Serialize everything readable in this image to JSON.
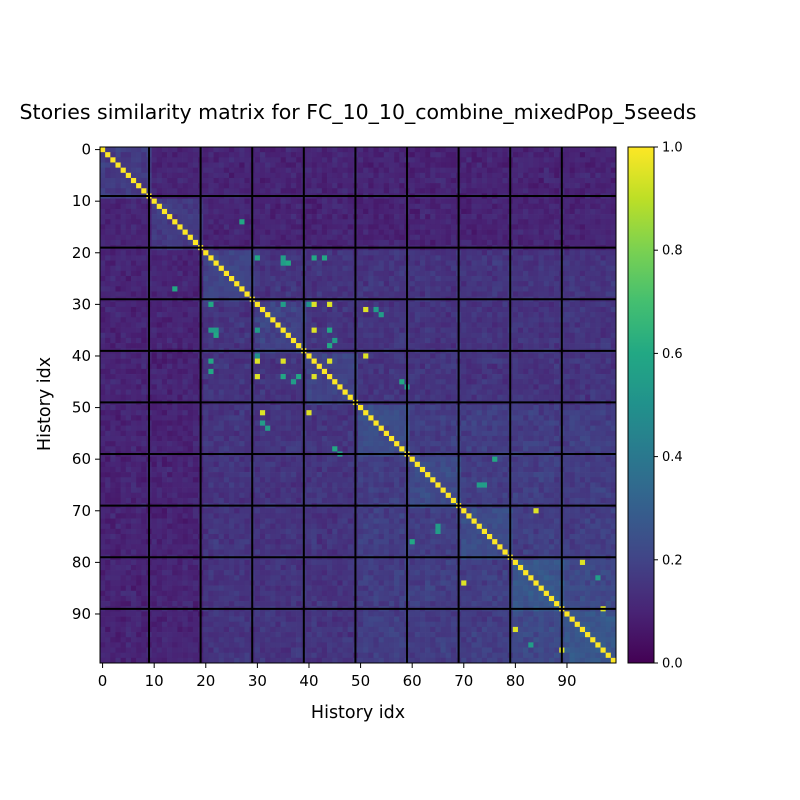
{
  "chart_data": {
    "type": "heatmap",
    "title": "Stories similarity matrix for FC_10_10_combine_mixedPop_5seeds",
    "xlabel": "History idx",
    "ylabel": "History idx",
    "size": 100,
    "block_size": 10,
    "x_ticks": [
      0,
      10,
      20,
      30,
      40,
      50,
      60,
      70,
      80,
      90
    ],
    "y_ticks": [
      0,
      10,
      20,
      30,
      40,
      50,
      60,
      70,
      80,
      90
    ],
    "colorbar": {
      "colormap": "viridis",
      "range": [
        0.0,
        1.0
      ],
      "ticks": [
        0.0,
        0.2,
        0.4,
        0.6,
        0.8,
        1.0
      ],
      "tick_labels": [
        "0.0",
        "0.2",
        "0.4",
        "0.6",
        "0.8",
        "1.0"
      ]
    },
    "diagonal_value": 1.0,
    "typical_value": 0.12,
    "grid_lines": "black lines separating blocks every 10 indices",
    "high_similarity_pairs": [
      [
        21,
        30,
        0.6
      ],
      [
        21,
        41,
        0.6
      ],
      [
        21,
        43,
        0.6
      ],
      [
        21,
        35,
        0.6
      ],
      [
        30,
        41,
        0.95
      ],
      [
        30,
        44,
        0.95
      ],
      [
        30,
        35,
        0.55
      ],
      [
        30,
        40,
        0.5
      ],
      [
        35,
        41,
        0.95
      ],
      [
        35,
        44,
        0.6
      ],
      [
        35,
        21,
        0.55
      ],
      [
        35,
        22,
        0.55
      ],
      [
        41,
        44,
        0.95
      ],
      [
        40,
        51,
        0.95
      ],
      [
        31,
        51,
        0.95
      ],
      [
        31,
        53,
        0.55
      ],
      [
        37,
        45,
        0.55
      ],
      [
        38,
        44,
        0.6
      ],
      [
        27,
        14,
        0.6
      ],
      [
        14,
        27,
        0.6
      ],
      [
        58,
        45,
        0.6
      ],
      [
        46,
        59,
        0.55
      ],
      [
        54,
        32,
        0.55
      ],
      [
        70,
        84,
        0.95
      ],
      [
        80,
        93,
        0.95
      ],
      [
        89,
        97,
        0.95
      ],
      [
        97,
        89,
        0.95
      ],
      [
        76,
        60,
        0.6
      ],
      [
        65,
        73,
        0.55
      ],
      [
        74,
        65,
        0.55
      ],
      [
        83,
        96,
        0.55
      ],
      [
        36,
        22,
        0.6
      ],
      [
        22,
        36,
        0.6
      ],
      [
        43,
        21,
        0.6
      ],
      [
        44,
        30,
        0.95
      ]
    ]
  }
}
